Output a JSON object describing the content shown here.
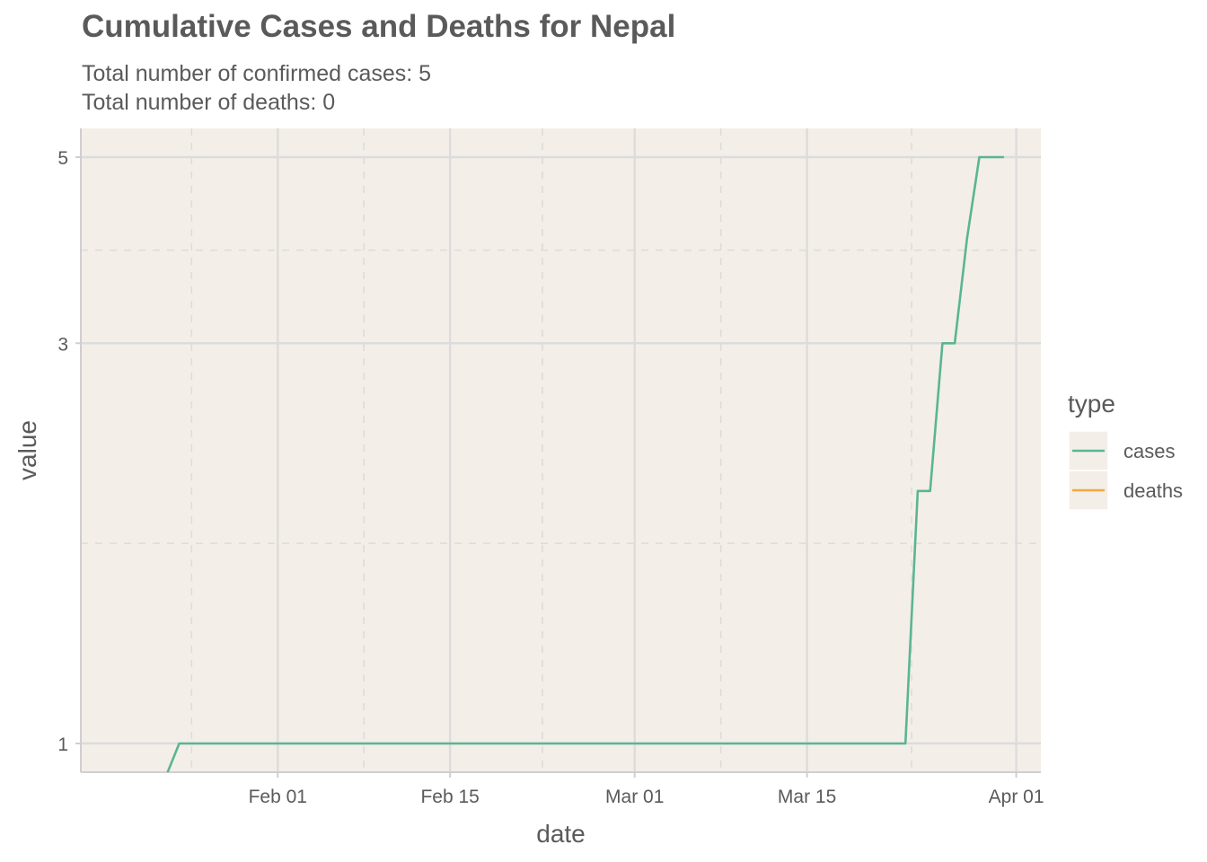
{
  "chart_data": {
    "type": "line",
    "title": "Cumulative Cases and Deaths for Nepal",
    "subtitle_lines": [
      "Total number of confirmed cases: 5",
      "Total number of deaths: 0"
    ],
    "xlabel": "date",
    "ylabel": "value",
    "y_scale": "log",
    "x_ticks": [
      {
        "date": "2020-02-01",
        "label": "Feb 01"
      },
      {
        "date": "2020-02-15",
        "label": "Feb 15"
      },
      {
        "date": "2020-03-01",
        "label": "Mar 01"
      },
      {
        "date": "2020-03-15",
        "label": "Mar 15"
      },
      {
        "date": "2020-04-01",
        "label": "Apr 01"
      }
    ],
    "y_ticks": [
      1,
      3,
      5
    ],
    "grid": true,
    "legend": {
      "title": "type",
      "position": "right"
    },
    "colors": {
      "panel_bg": "#f4eee8",
      "grid": "#dcdcdc",
      "cases": "#5ab593",
      "deaths": "#f4a742"
    },
    "series": [
      {
        "name": "cases",
        "points": [
          [
            "2020-01-23",
            0.92
          ],
          [
            "2020-01-24",
            1
          ],
          [
            "2020-03-23",
            1
          ],
          [
            "2020-03-24",
            2
          ],
          [
            "2020-03-25",
            2
          ],
          [
            "2020-03-26",
            3
          ],
          [
            "2020-03-27",
            3
          ],
          [
            "2020-03-28",
            4
          ],
          [
            "2020-03-29",
            5
          ],
          [
            "2020-03-31",
            5
          ]
        ]
      },
      {
        "name": "deaths",
        "points": []
      }
    ]
  }
}
